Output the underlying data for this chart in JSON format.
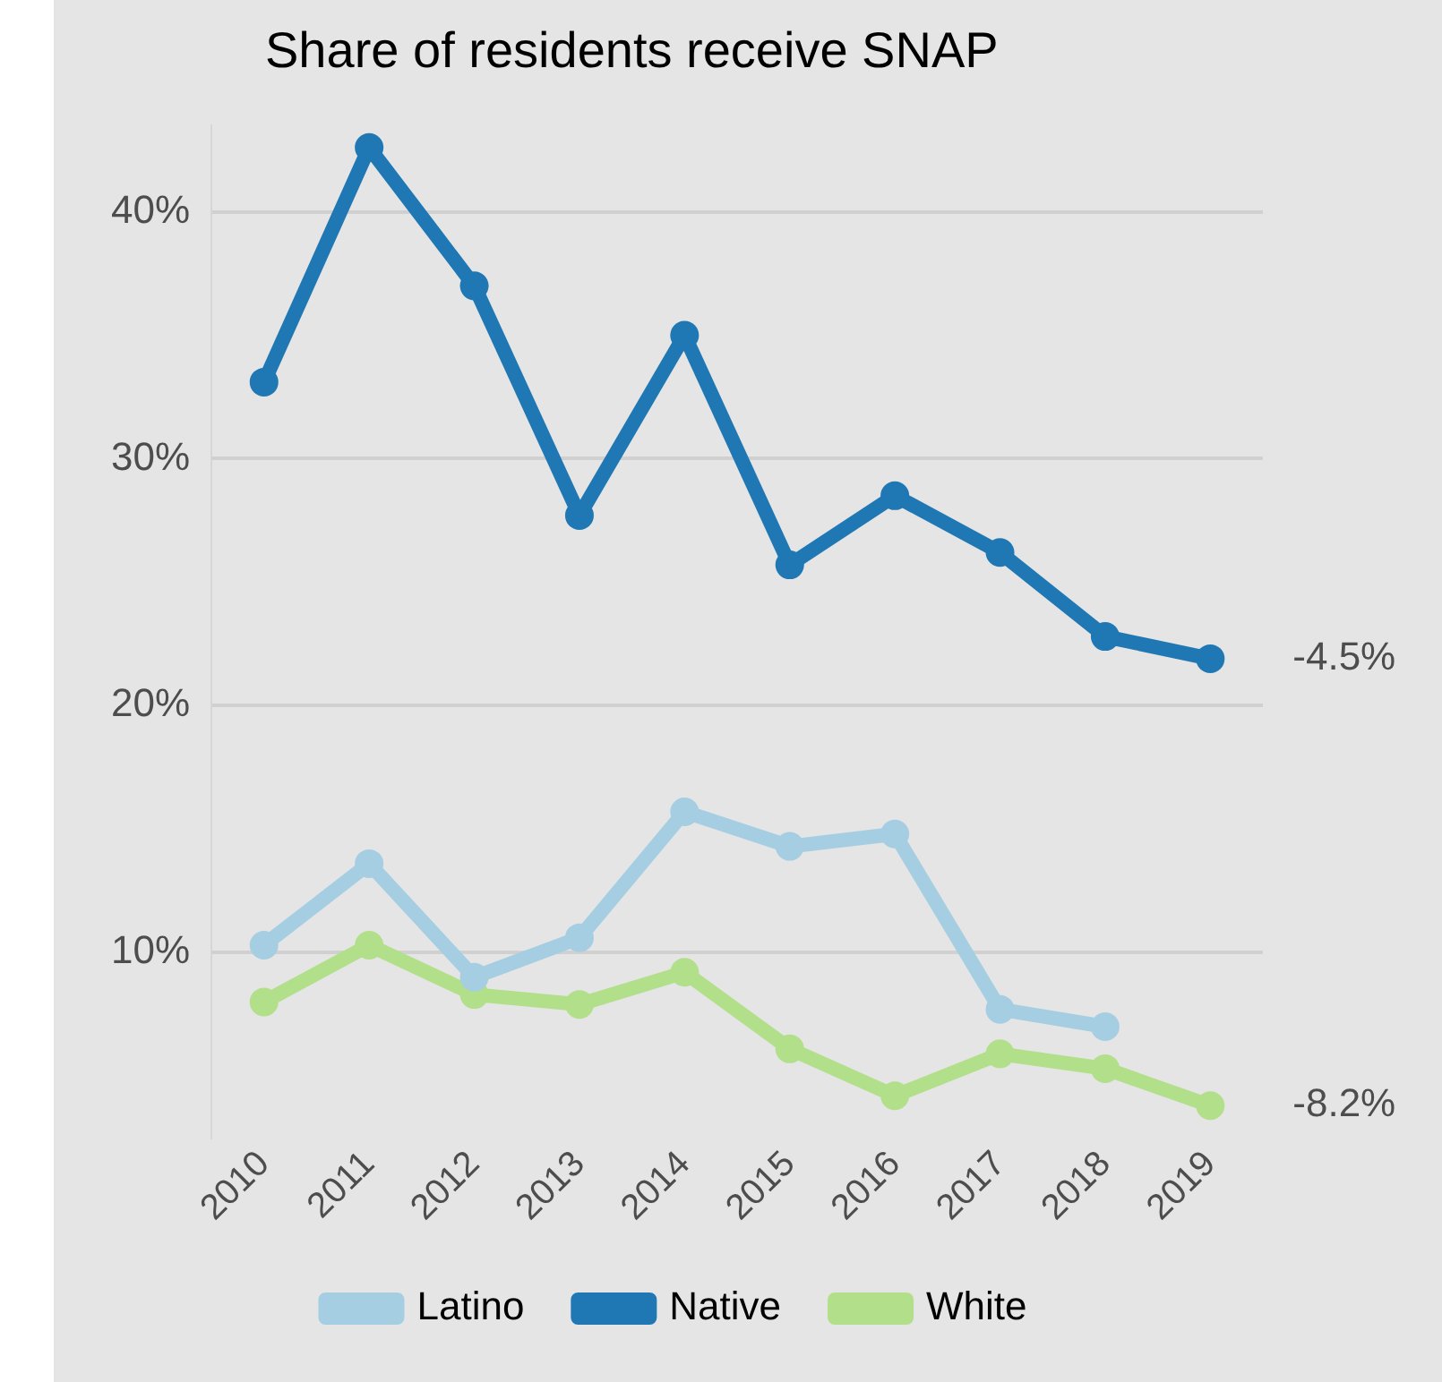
{
  "chart_data": {
    "type": "line",
    "title": "Share of residents receive SNAP",
    "categories": [
      "2010",
      "2011",
      "2012",
      "2013",
      "2014",
      "2015",
      "2016",
      "2017",
      "2018",
      "2019"
    ],
    "series": [
      {
        "name": "Latino",
        "color": "#a6cee3",
        "values": [
          10.3,
          13.6,
          9.0,
          10.6,
          15.7,
          14.3,
          14.8,
          7.7,
          7.0,
          null
        ]
      },
      {
        "name": "Native",
        "color": "#1f78b4",
        "values": [
          33.1,
          42.6,
          37.0,
          27.7,
          35.0,
          25.7,
          28.5,
          26.2,
          22.8,
          21.9
        ]
      },
      {
        "name": "White",
        "color": "#b2df8a",
        "values": [
          8.0,
          10.3,
          8.3,
          7.9,
          9.2,
          6.1,
          4.2,
          5.9,
          5.3,
          3.8
        ]
      }
    ],
    "ylim": [
      2.5,
      43.5
    ],
    "yticks": [
      {
        "value": 10,
        "label": "10%"
      },
      {
        "value": 20,
        "label": "20%"
      },
      {
        "value": 30,
        "label": "30%"
      },
      {
        "value": 40,
        "label": "40%"
      }
    ],
    "grid": "y",
    "legend": "bottom",
    "marker": "circle",
    "line_style": "solid",
    "annotations": [
      {
        "text": "-4.5%",
        "x": "2019",
        "y": 21.9
      },
      {
        "text": "-8.2%",
        "x": "2019",
        "y": 3.8
      }
    ]
  }
}
